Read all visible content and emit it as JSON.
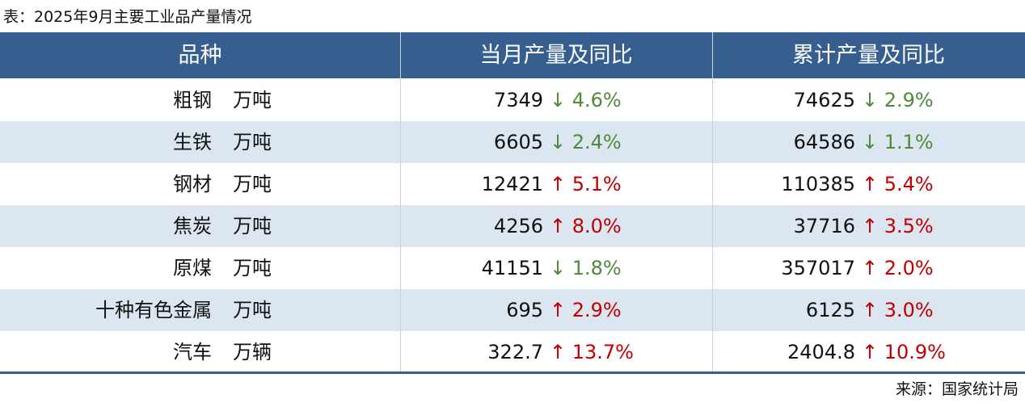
{
  "title": "表：2025年9月主要工业品产量情况",
  "table": {
    "header": [
      "品种",
      "当月产量及同比",
      "累计产量及同比"
    ],
    "rows": [
      {
        "name": "粗钢",
        "unit": "万吨",
        "month": "7349",
        "month_change": "↓ 4.6%",
        "total": "74625",
        "total_change": "↓ 2.9%"
      },
      {
        "name": "生铁",
        "unit": "万吨",
        "month": "6605",
        "month_change": "↓ 2.4%",
        "total": "64586",
        "total_change": "↓ 1.1%"
      },
      {
        "name": "钢材",
        "unit": "万吨",
        "month": "12421",
        "month_change": "↑ 5.1%",
        "total": "110385",
        "total_change": "↑ 5.4%"
      },
      {
        "name": "焦炭",
        "unit": "万吨",
        "month": "4256",
        "month_change": "↑ 8.0%",
        "total": "37716",
        "total_change": "↑ 3.5%"
      },
      {
        "name": "原煤",
        "unit": "万吨",
        "month": "41151",
        "month_change": "↓ 1.8%",
        "total": "357017",
        "total_change": "↑ 2.0%"
      },
      {
        "name": "十种有色金属",
        "unit": "万吨",
        "month": "695",
        "month_change": "↑ 2.9%",
        "total": "6125",
        "total_change": "↑ 3.0%"
      },
      {
        "name": "汽车",
        "unit": "万辆",
        "month": "322.7",
        "month_change": "↑ 13.7%",
        "total": "2404.8",
        "total_change": "↑ 10.9%"
      }
    ]
  },
  "source": "来源：国家统计局"
}
